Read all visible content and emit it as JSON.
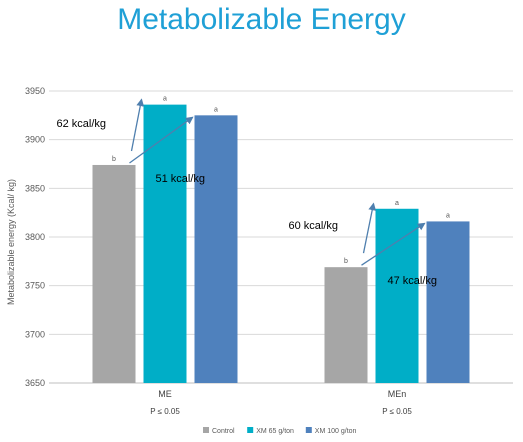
{
  "chart_data": {
    "type": "bar",
    "title": "Metabolizable Energy",
    "ylabel": "Metabolizable energy (Kcal/ kg)",
    "xlabel": "",
    "ylim": [
      3650,
      3950
    ],
    "yticks": [
      3650,
      3700,
      3750,
      3800,
      3850,
      3900,
      3950
    ],
    "grid": true,
    "legend_position": "bottom",
    "categories": [
      "ME",
      "MEn"
    ],
    "significance": [
      "P ≤ 0.05",
      "P ≤ 0.05"
    ],
    "series": [
      {
        "name": "Control",
        "color": "#a6a6a6",
        "values": [
          3874,
          3769
        ],
        "letters": [
          "b",
          "b"
        ]
      },
      {
        "name": "XM 65 g/ton",
        "color": "#00aec7",
        "values": [
          3936,
          3829
        ],
        "letters": [
          "a",
          "a"
        ]
      },
      {
        "name": "XM 100 g/ton",
        "color": "#4f81bd",
        "values": [
          3925,
          3816
        ],
        "letters": [
          "a",
          "a"
        ]
      }
    ],
    "annotations": [
      {
        "text": "62 kcal/kg",
        "category": "ME",
        "from_series": 0,
        "to_series": 1
      },
      {
        "text": "51 kcal/kg",
        "category": "ME",
        "from_series": 0,
        "to_series": 2
      },
      {
        "text": "60 kcal/kg",
        "category": "MEn",
        "from_series": 0,
        "to_series": 1
      },
      {
        "text": "47 kcal/kg",
        "category": "MEn",
        "from_series": 0,
        "to_series": 2
      }
    ]
  }
}
